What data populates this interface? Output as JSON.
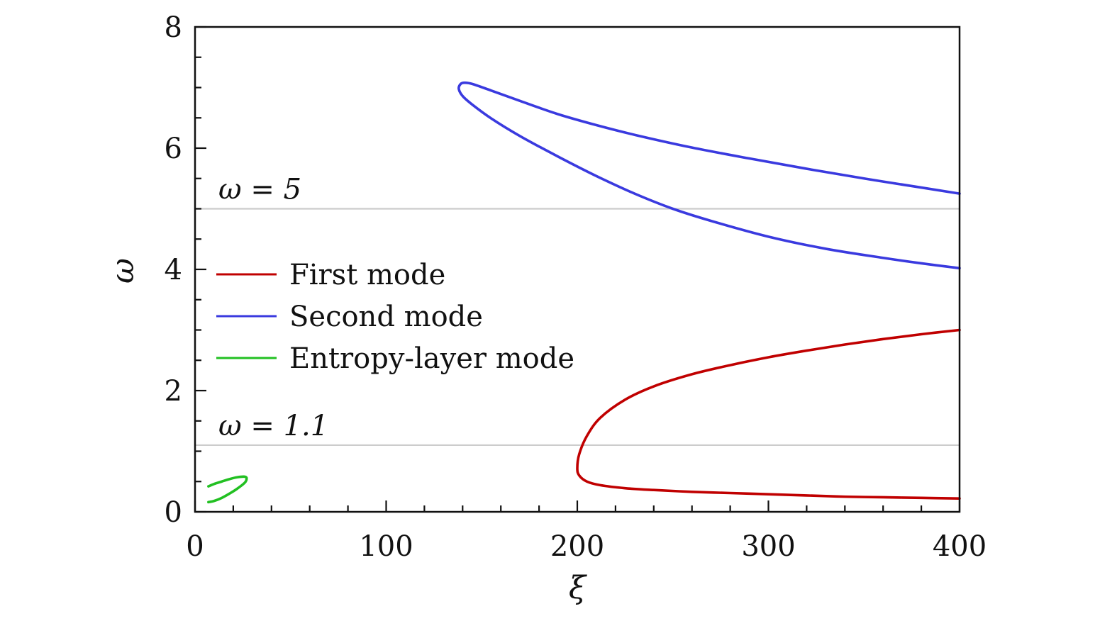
{
  "chart_data": {
    "type": "line",
    "title": "",
    "xlabel": "ξ",
    "ylabel": "ω",
    "xlim": [
      0,
      400
    ],
    "ylim": [
      0,
      8
    ],
    "xticks": [
      0,
      100,
      200,
      300,
      400
    ],
    "xtick_labels": [
      "0",
      "100",
      "200",
      "300",
      "400"
    ],
    "yticks": [
      0,
      2,
      4,
      6,
      8
    ],
    "ytick_labels": [
      "0",
      "2",
      "4",
      "6",
      "8"
    ],
    "x_minor_step": 20,
    "y_minor_step": 0.5,
    "grid": false,
    "legend": {
      "position": "center-left"
    },
    "reference_lines": [
      {
        "y": 5,
        "label": "ω = 5",
        "color": "#cccccc"
      },
      {
        "y": 1.1,
        "label": "ω = 1.1",
        "color": "#cccccc"
      }
    ],
    "series": [
      {
        "name": "First mode",
        "color": "#c00000",
        "x": [
          400,
          380,
          360,
          340,
          320,
          300,
          280,
          260,
          240,
          225,
          212,
          205,
          201,
          200,
          201,
          205,
          212,
          225,
          240,
          260,
          280,
          300,
          320,
          340,
          360,
          380,
          400
        ],
        "y": [
          3.0,
          2.93,
          2.85,
          2.76,
          2.66,
          2.55,
          2.42,
          2.27,
          2.07,
          1.85,
          1.55,
          1.25,
          0.95,
          0.72,
          0.6,
          0.5,
          0.44,
          0.39,
          0.36,
          0.33,
          0.31,
          0.29,
          0.27,
          0.25,
          0.24,
          0.23,
          0.22
        ]
      },
      {
        "name": "Second mode",
        "color": "#3a3adf",
        "x": [
          400,
          380,
          350,
          320,
          290,
          260,
          230,
          210,
          190,
          170,
          155,
          145,
          141,
          139,
          138,
          140,
          145,
          155,
          170,
          190,
          210,
          230,
          250,
          270,
          300,
          330,
          360,
          380,
          400
        ],
        "y": [
          5.25,
          5.35,
          5.5,
          5.66,
          5.83,
          6.01,
          6.22,
          6.38,
          6.56,
          6.78,
          6.95,
          7.06,
          7.08,
          7.06,
          6.98,
          6.86,
          6.72,
          6.49,
          6.2,
          5.86,
          5.54,
          5.25,
          5.0,
          4.8,
          4.54,
          4.34,
          4.19,
          4.1,
          4.02
        ]
      },
      {
        "name": "Entropy-layer mode",
        "color": "#22c022",
        "x": [
          7,
          10,
          14,
          18,
          22,
          26,
          27,
          26,
          22,
          18,
          14,
          10,
          7
        ],
        "y": [
          0.16,
          0.18,
          0.23,
          0.3,
          0.38,
          0.48,
          0.55,
          0.58,
          0.57,
          0.54,
          0.5,
          0.46,
          0.42
        ]
      }
    ]
  }
}
